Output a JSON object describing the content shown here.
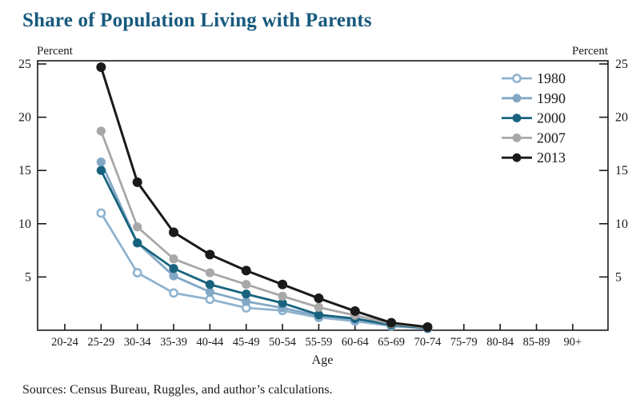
{
  "page": {
    "title": "Share of Population Living with Parents",
    "axis_unit_left": "Percent",
    "axis_unit_right": "Percent",
    "footer": "Sources: Census Bureau, Ruggles, and author’s calculations."
  },
  "colors": {
    "title": "#17597E",
    "axis": "#1A1A1A",
    "series_1980": "#8FB3D0",
    "series_1990": "#82A8C6",
    "series_2000": "#17637F",
    "series_2007": "#A8A8A8",
    "series_2013": "#1A1A1A"
  },
  "chart_data": {
    "type": "line",
    "title": "Share of Population Living with Parents",
    "xlabel": "Age",
    "ylabel": "Percent",
    "ylim": [
      0,
      25.3
    ],
    "yticks": [
      5,
      10,
      15,
      20,
      25
    ],
    "grid": false,
    "legend_position": "top-right",
    "categories": [
      "20-24",
      "25-29",
      "30-34",
      "35-39",
      "40-44",
      "45-49",
      "50-54",
      "55-59",
      "60-64",
      "65-69",
      "70-74",
      "75-79",
      "80-84",
      "85-89",
      "90+"
    ],
    "series": [
      {
        "name": "1980",
        "color": "#8FB3D0",
        "marker": "open-circle",
        "values": [
          null,
          11.0,
          5.4,
          3.5,
          2.9,
          2.1,
          1.85,
          1.2,
          0.85,
          0.4,
          0.15,
          null,
          null,
          null,
          null
        ]
      },
      {
        "name": "1990",
        "color": "#82A8C6",
        "marker": "circle",
        "values": [
          null,
          15.8,
          8.2,
          5.1,
          3.6,
          2.7,
          2.1,
          1.35,
          1.0,
          0.45,
          0.2,
          null,
          null,
          null,
          null
        ]
      },
      {
        "name": "2000",
        "color": "#17637F",
        "marker": "circle",
        "values": [
          null,
          15.0,
          8.2,
          5.8,
          4.3,
          3.4,
          2.55,
          1.45,
          1.1,
          0.5,
          0.2,
          null,
          null,
          null,
          null
        ]
      },
      {
        "name": "2007",
        "color": "#A8A8A8",
        "marker": "circle",
        "values": [
          null,
          18.7,
          9.7,
          6.7,
          5.4,
          4.3,
          3.2,
          2.15,
          1.4,
          0.6,
          0.25,
          null,
          null,
          null,
          null
        ]
      },
      {
        "name": "2013",
        "color": "#1A1A1A",
        "marker": "circle",
        "values": [
          null,
          24.7,
          13.9,
          9.2,
          7.1,
          5.6,
          4.3,
          3.0,
          1.8,
          0.7,
          0.3,
          null,
          null,
          null,
          null
        ]
      }
    ]
  }
}
